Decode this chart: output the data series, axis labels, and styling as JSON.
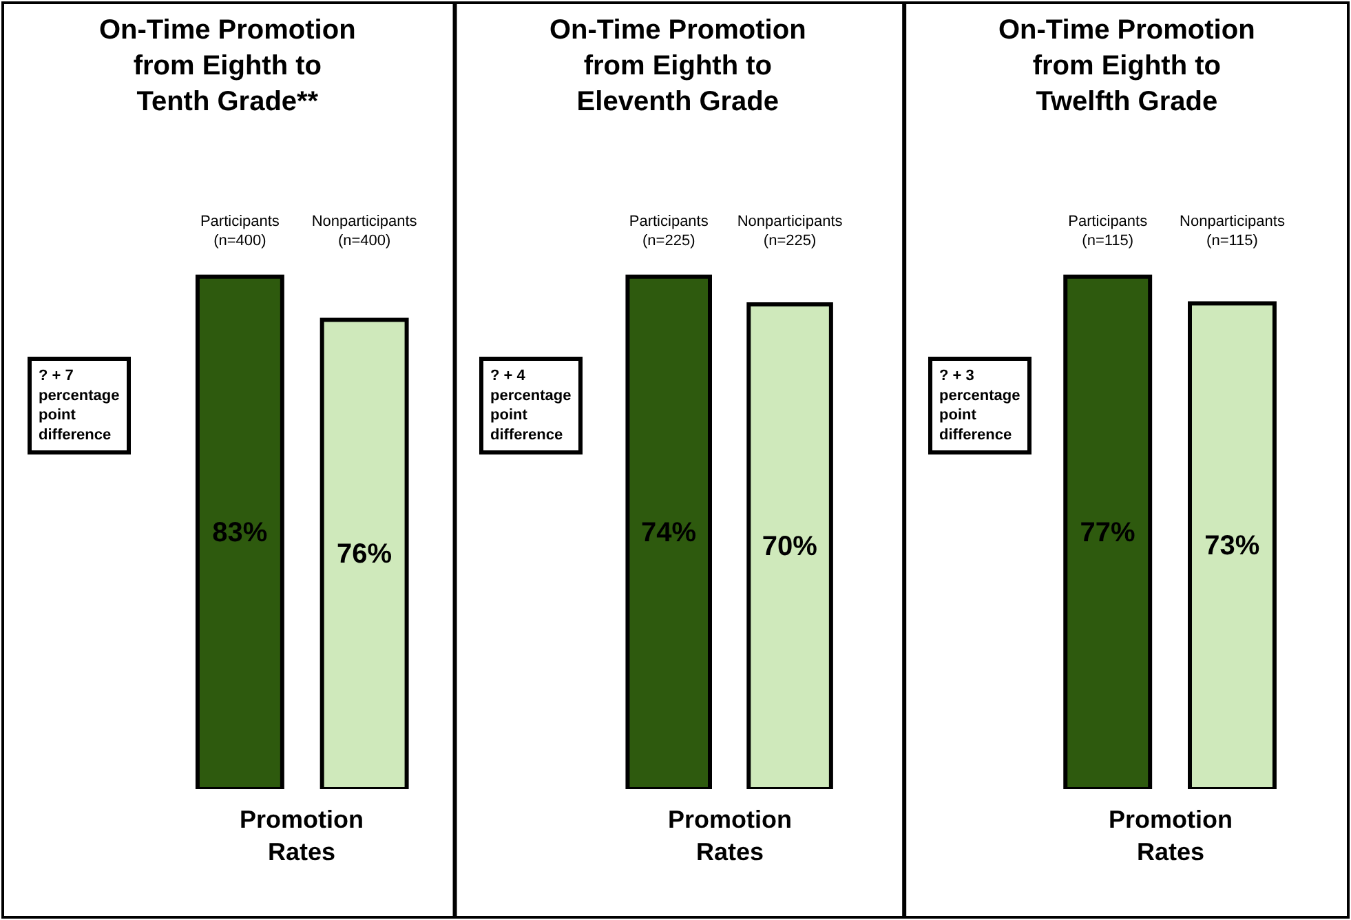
{
  "chart_data": [
    {
      "type": "bar",
      "title": "On-Time Promotion from Eighth to Tenth Grade**",
      "xlabel": "Promotion Rates",
      "categories": [
        "Participants (n=400)",
        "Nonparticipants (n=400)"
      ],
      "values": [
        83,
        76
      ],
      "value_labels": [
        "83%",
        "76%"
      ],
      "colors": [
        "#2e5a0e",
        "#cfe9bb"
      ],
      "annotations": [
        "? + 7 percentage point difference"
      ]
    },
    {
      "type": "bar",
      "title": "On-Time Promotion from Eighth to Eleventh Grade",
      "xlabel": "Promotion Rates",
      "categories": [
        "Participants (n=225)",
        "Nonparticipants (n=225)"
      ],
      "values": [
        74,
        70
      ],
      "value_labels": [
        "74%",
        "70%"
      ],
      "colors": [
        "#2e5a0e",
        "#cfe9bb"
      ],
      "annotations": [
        "? + 4 percentage point difference"
      ]
    },
    {
      "type": "bar",
      "title": "On-Time Promotion from Eighth to Twelfth Grade",
      "xlabel": "Promotion Rates",
      "categories": [
        "Participants (n=115)",
        "Nonparticipants (n=115)"
      ],
      "values": [
        77,
        73
      ],
      "value_labels": [
        "77%",
        "73%"
      ],
      "colors": [
        "#2e5a0e",
        "#cfe9bb"
      ],
      "annotations": [
        "? + 3 percentage point difference"
      ]
    }
  ]
}
